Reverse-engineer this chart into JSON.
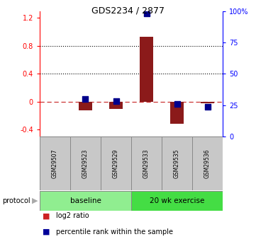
{
  "title": "GDS2234 / 2877",
  "samples": [
    "GSM29507",
    "GSM29523",
    "GSM29529",
    "GSM29533",
    "GSM29535",
    "GSM29536"
  ],
  "log2_ratio": [
    0.0,
    -0.12,
    -0.1,
    0.93,
    -0.32,
    -0.02
  ],
  "percentile_rank_pct": [
    null,
    30,
    28,
    98,
    26,
    24
  ],
  "bar_color": "#8B1A1A",
  "dot_color": "#00008B",
  "ylim_left": [
    -0.5,
    1.3
  ],
  "ylim_right": [
    0,
    100
  ],
  "yticks_left": [
    -0.4,
    0.0,
    0.4,
    0.8,
    1.2
  ],
  "ytick_labels_left": [
    "-0.4",
    "0",
    "0.4",
    "0.8",
    "1.2"
  ],
  "yticks_right": [
    0,
    25,
    50,
    75,
    100
  ],
  "ytick_labels_right": [
    "0",
    "25",
    "50",
    "75",
    "100%"
  ],
  "hlines": [
    0.4,
    0.8
  ],
  "zero_line": 0.0,
  "bar_width": 0.45,
  "sample_box_color": "#c8c8c8",
  "group_color_baseline": "#90ee90",
  "group_color_exercise": "#44dd44",
  "zero_dash_color": "#cc3333",
  "legend_square_color_log2": "#cc2222",
  "legend_square_color_pct": "#000099"
}
